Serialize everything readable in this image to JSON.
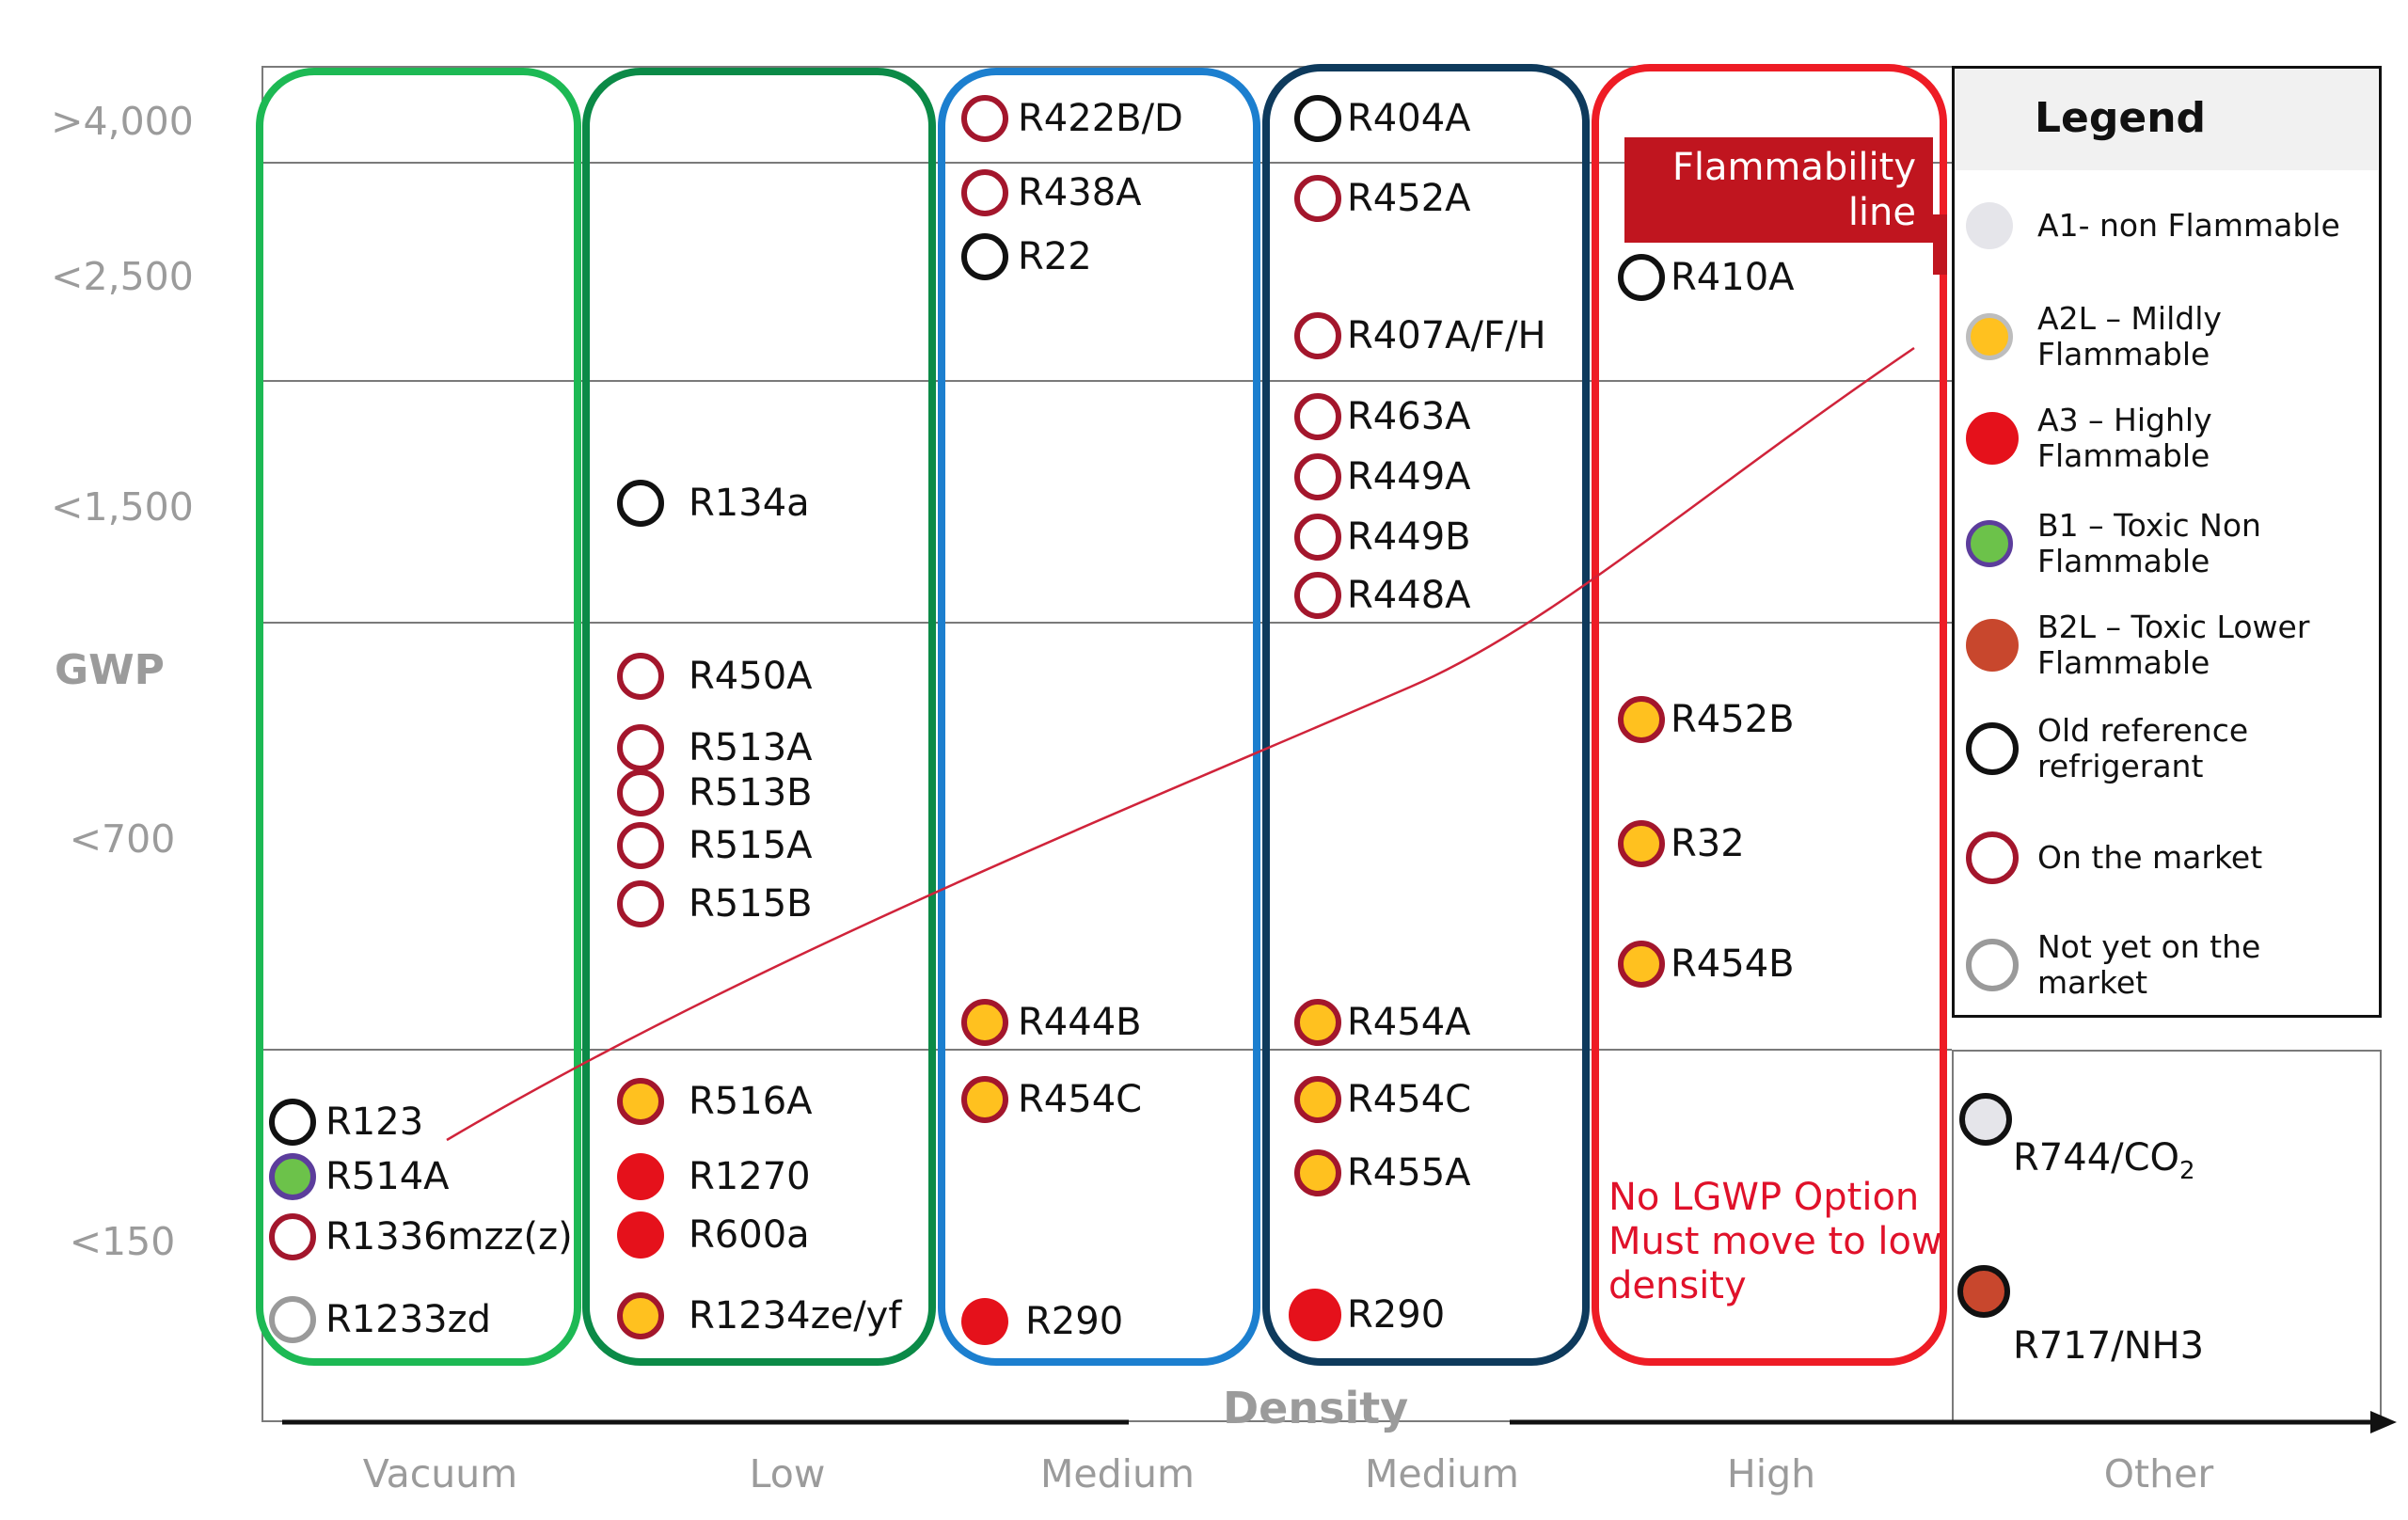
{
  "gwp_axis": {
    "title": "GWP",
    "ticks": [
      ">4,000",
      "<2,500",
      "<1,500",
      "<700",
      "<150"
    ]
  },
  "density_axis": {
    "title": "Density",
    "columns": [
      "Vacuum",
      "Low",
      "Medium",
      "Medium",
      "High",
      "Other"
    ]
  },
  "flammability_line": {
    "label": "Flammability line"
  },
  "no_lgwp_note": "No LGWP Option Must move to low density",
  "legend": {
    "title": "Legend",
    "items": [
      {
        "label": "A1- non Flammable",
        "fill": "A1",
        "stroke": "none"
      },
      {
        "label": "A2L – Mildly Flammable",
        "fill": "A2L",
        "stroke": "none"
      },
      {
        "label": "A3 – Highly Flammable",
        "fill": "A3",
        "stroke": "none"
      },
      {
        "label": "B1 – Toxic Non Flammable",
        "fill": "B1",
        "stroke": "none"
      },
      {
        "label": "B2L – Toxic Lower Flammable",
        "fill": "B2L",
        "stroke": "none"
      },
      {
        "label": "Old reference refrigerant",
        "fill": "none",
        "stroke": "old"
      },
      {
        "label": "On the market",
        "fill": "none",
        "stroke": "market"
      },
      {
        "label": "Not yet on the market",
        "fill": "none",
        "stroke": "notyet"
      }
    ]
  },
  "colors": {
    "vacuum_group": "#1db954",
    "low_group": "#0b8a47",
    "medium_group_1": "#1c7fcf",
    "medium_group_2": "#0e3a5c",
    "high_group": "#ee1c25",
    "flammability_line": "#d0233a",
    "A1": "#e5e5ea",
    "A2L": "#ffc11f",
    "A3": "#e5111b",
    "B1": "#6cc24a",
    "B2L": "#c8472d"
  },
  "columns": {
    "vacuum": [
      {
        "label": "R123",
        "fill": "none",
        "stroke": "old"
      },
      {
        "label": "R514A",
        "fill": "B1",
        "stroke": "notyet_purple"
      },
      {
        "label": "R1336mzz(z)",
        "fill": "none",
        "stroke": "market"
      },
      {
        "label": "R1233zd",
        "fill": "none",
        "stroke": "notyet"
      }
    ],
    "low": [
      {
        "label": "R134a",
        "fill": "none",
        "stroke": "old"
      },
      {
        "label": "R450A",
        "fill": "none",
        "stroke": "market"
      },
      {
        "label": "R513A",
        "fill": "none",
        "stroke": "market"
      },
      {
        "label": "R513B",
        "fill": "none",
        "stroke": "market"
      },
      {
        "label": "R515A",
        "fill": "none",
        "stroke": "market"
      },
      {
        "label": "R515B",
        "fill": "none",
        "stroke": "market"
      },
      {
        "label": "R516A",
        "fill": "A2L",
        "stroke": "market"
      },
      {
        "label": "R1270",
        "fill": "A3",
        "stroke": "none"
      },
      {
        "label": "R600a",
        "fill": "A3",
        "stroke": "none"
      },
      {
        "label": "R1234ze/yf",
        "fill": "A2L",
        "stroke": "market"
      }
    ],
    "medium1": [
      {
        "label": "R422B/D",
        "fill": "none",
        "stroke": "market"
      },
      {
        "label": "R438A",
        "fill": "none",
        "stroke": "market"
      },
      {
        "label": "R22",
        "fill": "none",
        "stroke": "old"
      },
      {
        "label": "R444B",
        "fill": "A2L",
        "stroke": "market"
      },
      {
        "label": "R454C",
        "fill": "A2L",
        "stroke": "market"
      },
      {
        "label": "R290",
        "fill": "A3",
        "stroke": "none"
      }
    ],
    "medium2": [
      {
        "label": "R404A",
        "fill": "none",
        "stroke": "old"
      },
      {
        "label": "R452A",
        "fill": "none",
        "stroke": "market"
      },
      {
        "label": "R407A/F/H",
        "fill": "none",
        "stroke": "market"
      },
      {
        "label": "R463A",
        "fill": "none",
        "stroke": "market"
      },
      {
        "label": "R449A",
        "fill": "none",
        "stroke": "market"
      },
      {
        "label": "R449B",
        "fill": "none",
        "stroke": "market"
      },
      {
        "label": "R448A",
        "fill": "none",
        "stroke": "market"
      },
      {
        "label": "R454A",
        "fill": "A2L",
        "stroke": "market"
      },
      {
        "label": "R454C",
        "fill": "A2L",
        "stroke": "market"
      },
      {
        "label": "R455A",
        "fill": "A2L",
        "stroke": "market"
      },
      {
        "label": "R290",
        "fill": "A3",
        "stroke": "none"
      }
    ],
    "high": [
      {
        "label": "R410A",
        "fill": "none",
        "stroke": "old"
      },
      {
        "label": "R452B",
        "fill": "A2L",
        "stroke": "market"
      },
      {
        "label": "R32",
        "fill": "A2L",
        "stroke": "market"
      },
      {
        "label": "R454B",
        "fill": "A2L",
        "stroke": "market"
      }
    ],
    "other": [
      {
        "label": "R744/CO",
        "subscript": "2",
        "fill": "A1",
        "stroke": "old"
      },
      {
        "label": "R717/NH3",
        "fill": "B2L",
        "stroke": "old"
      }
    ]
  }
}
